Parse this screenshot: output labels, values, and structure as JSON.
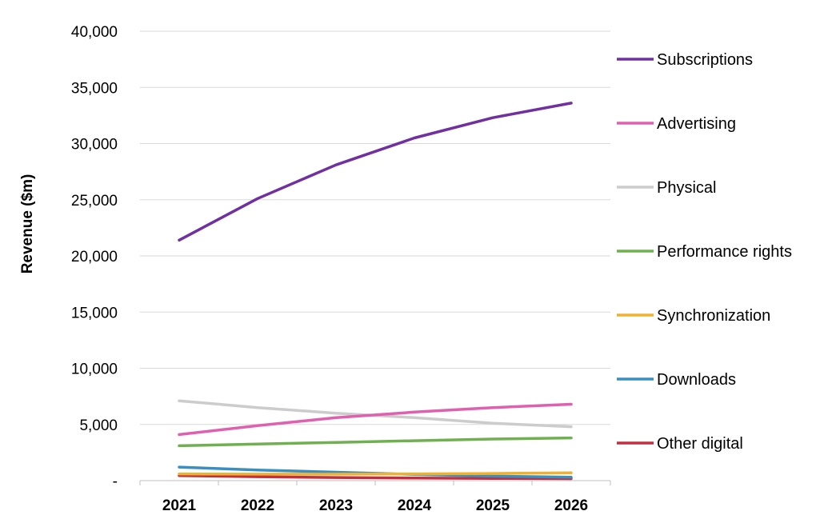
{
  "chart_data": {
    "type": "line",
    "ylabel": "Revenue ($m)",
    "xlabel": "",
    "categories": [
      "2021",
      "2022",
      "2023",
      "2024",
      "2025",
      "2026"
    ],
    "ylim": [
      0,
      40000
    ],
    "y_ticks": [
      0,
      5000,
      10000,
      15000,
      20000,
      25000,
      30000,
      35000,
      40000
    ],
    "y_tick_labels": [
      "-",
      "5,000",
      "10,000",
      "15,000",
      "20,000",
      "25,000",
      "30,000",
      "35,000",
      "40,000"
    ],
    "grid": "horizontal",
    "legend_position": "right",
    "series": [
      {
        "name": "Subscriptions",
        "color": "#7030a0",
        "values": [
          21400,
          25100,
          28100,
          30500,
          32300,
          33600
        ]
      },
      {
        "name": "Advertising",
        "color": "#e060b0",
        "values": [
          4100,
          4900,
          5600,
          6100,
          6500,
          6800
        ]
      },
      {
        "name": "Physical",
        "color": "#cccccc",
        "values": [
          7100,
          6500,
          6000,
          5600,
          5100,
          4800
        ]
      },
      {
        "name": "Performance rights",
        "color": "#70b050",
        "values": [
          3100,
          3250,
          3400,
          3550,
          3700,
          3800
        ]
      },
      {
        "name": "Synchronization",
        "color": "#f0b030",
        "values": [
          600,
          580,
          580,
          600,
          630,
          700
        ]
      },
      {
        "name": "Downloads",
        "color": "#3a8fc0",
        "values": [
          1200,
          950,
          750,
          550,
          400,
          300
        ]
      },
      {
        "name": "Other digital",
        "color": "#c03040",
        "values": [
          450,
          350,
          280,
          230,
          200,
          180
        ]
      }
    ]
  }
}
